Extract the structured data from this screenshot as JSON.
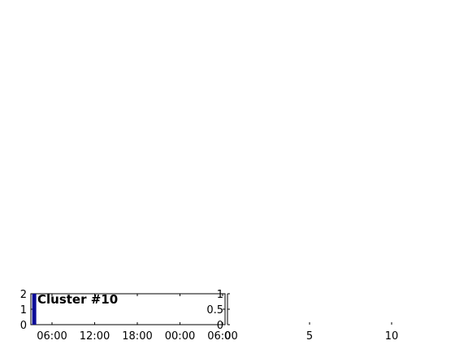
{
  "chart_data": [
    {
      "type": "bar",
      "title": "Cluster #10",
      "x_ticks": [
        "06:00",
        "12:00",
        "18:00",
        "00:00",
        "06:00"
      ],
      "y_ticks": [
        "0",
        "1",
        "2"
      ],
      "ylim": [
        0,
        2
      ],
      "bar_color": "#0a0a96",
      "bars": [
        {
          "x": "03:30",
          "value": 2
        }
      ],
      "grid": false
    },
    {
      "type": "bar",
      "title": "",
      "x_ticks": [
        "0",
        "5",
        "10"
      ],
      "xlim": [
        0,
        13
      ],
      "y_ticks": [
        "0",
        "0.5",
        "1"
      ],
      "ylim": [
        0,
        1
      ],
      "bars": [],
      "grid": false
    }
  ]
}
